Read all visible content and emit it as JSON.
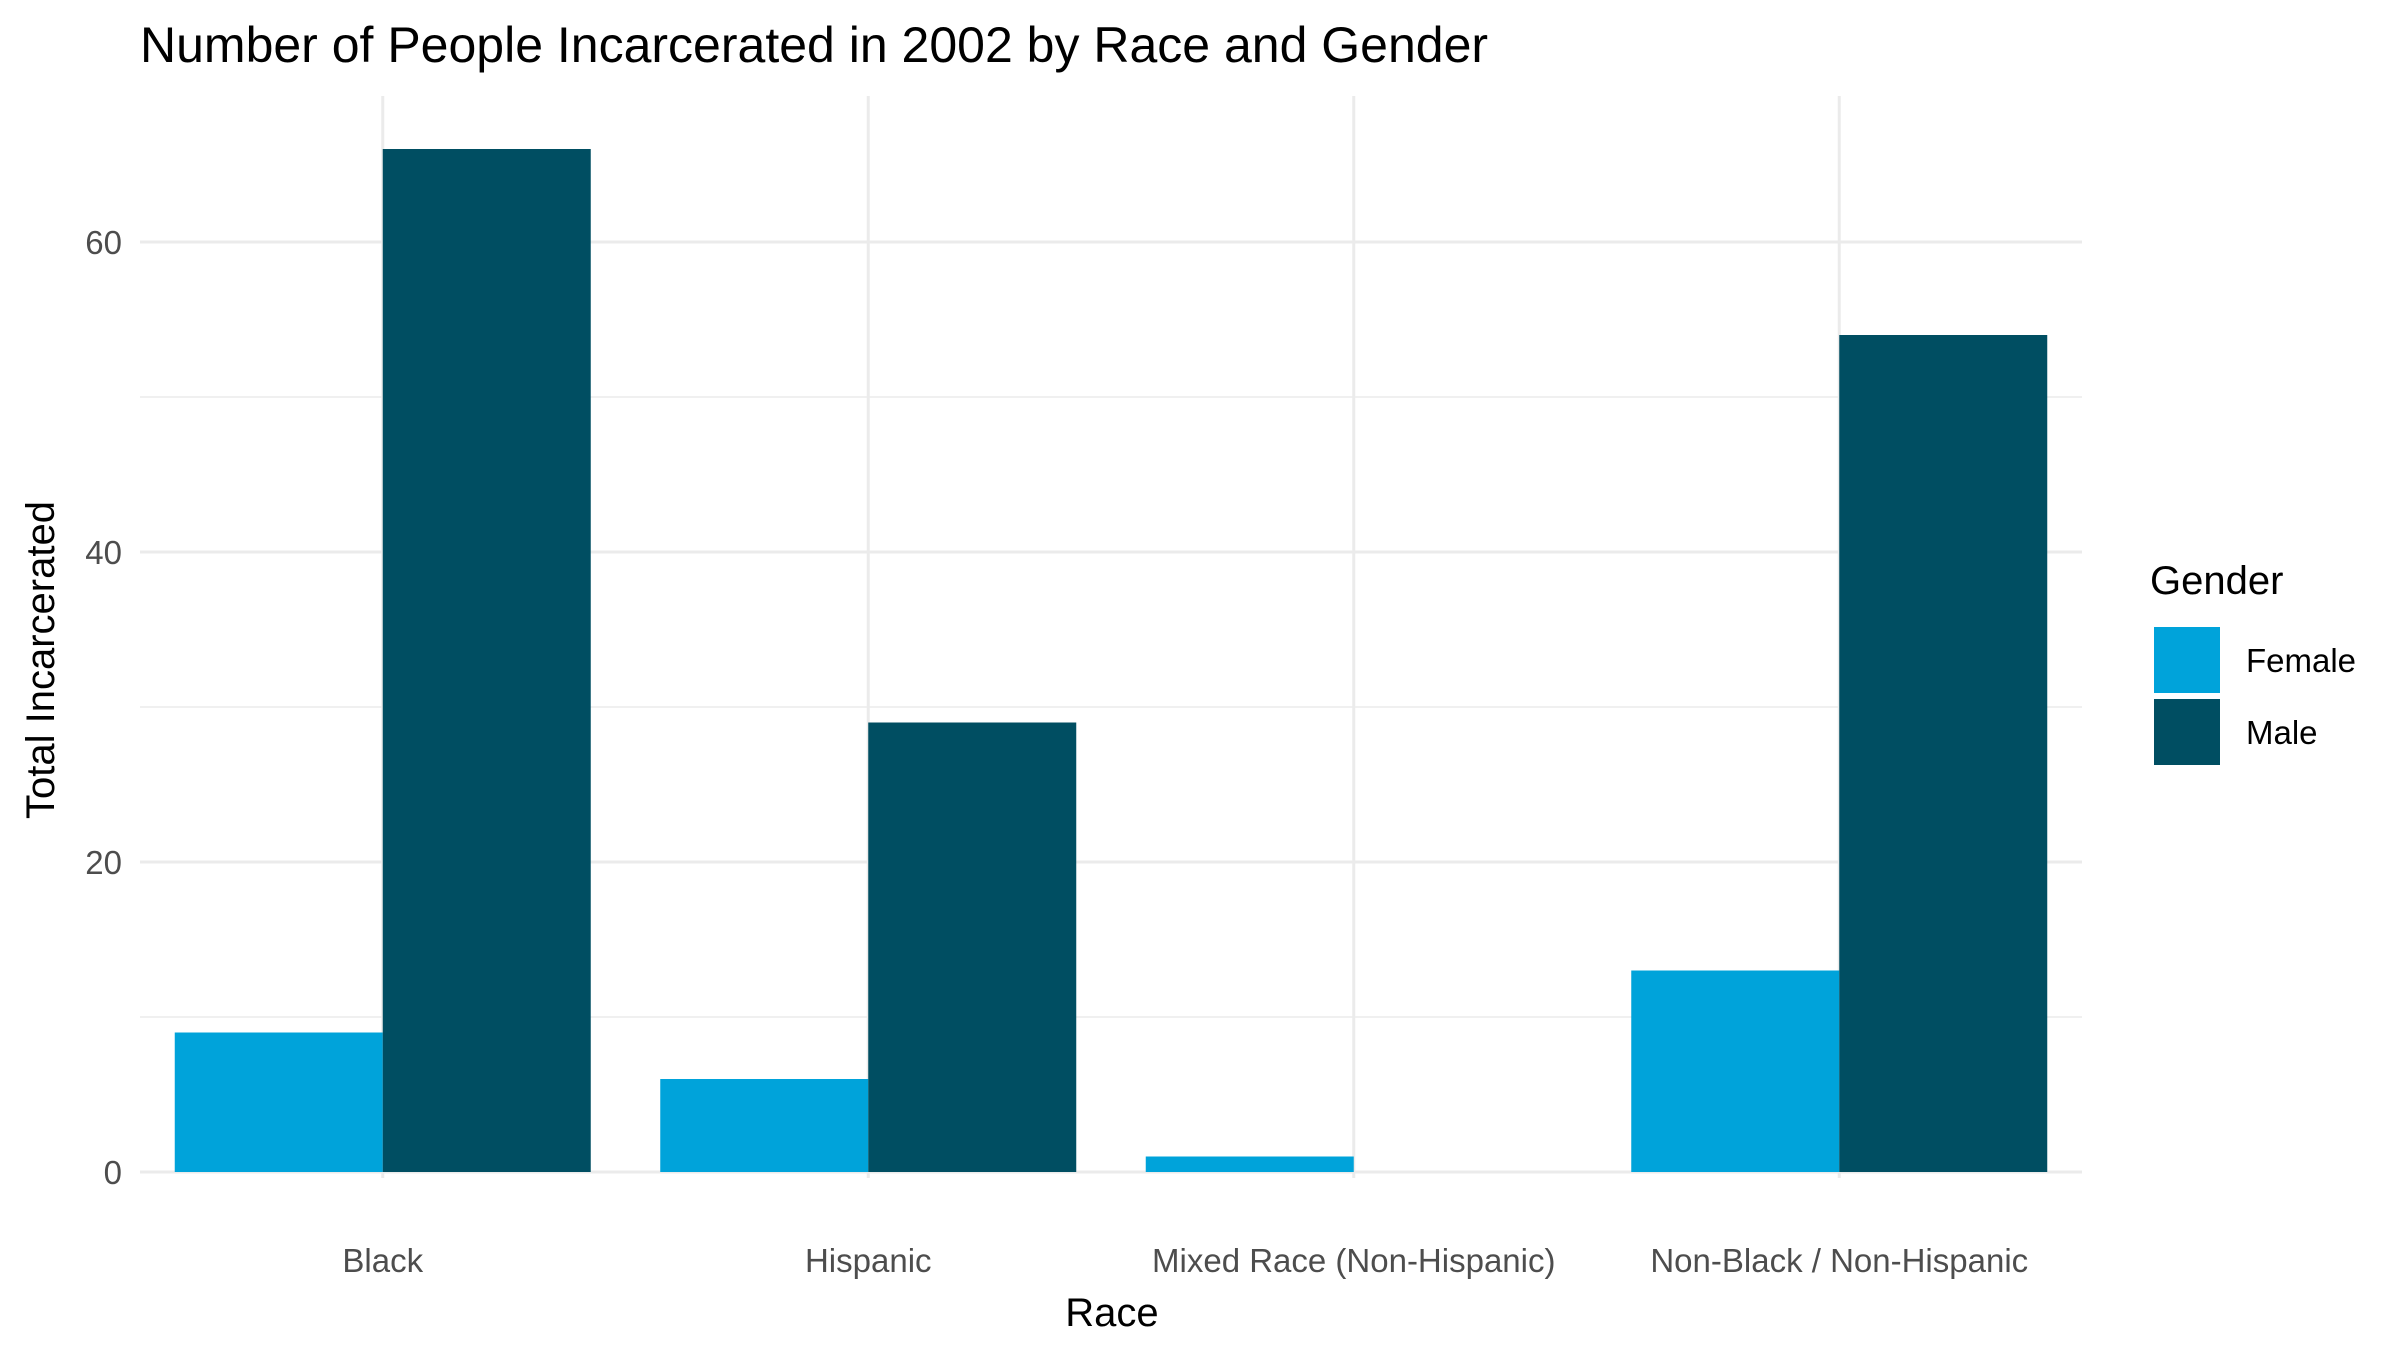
{
  "chart_data": {
    "type": "bar",
    "title": "Number of People Incarcerated in 2002 by Race and Gender",
    "xlabel": "Race",
    "ylabel": "Total Incarcerated",
    "categories": [
      "Black",
      "Hispanic",
      "Mixed Race (Non-Hispanic)",
      "Non-Black / Non-Hispanic"
    ],
    "series": [
      {
        "name": "Female",
        "values": [
          9,
          6,
          1,
          13
        ],
        "color": "#00a3da"
      },
      {
        "name": "Male",
        "values": [
          66,
          29,
          0,
          54
        ],
        "color": "#004e62"
      }
    ],
    "yticks": [
      0,
      20,
      40,
      60
    ],
    "ylim": [
      0,
      69
    ],
    "grid": true,
    "legend": {
      "title": "Gender",
      "position": "right"
    }
  }
}
